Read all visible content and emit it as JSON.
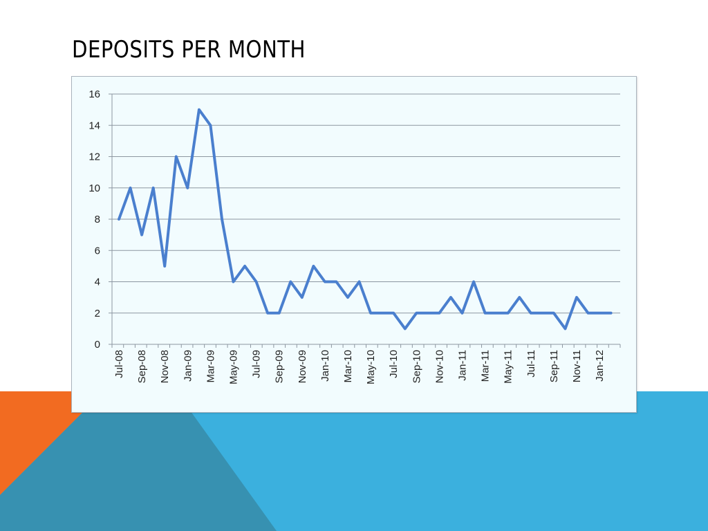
{
  "slide": {
    "title": "Deposits per month",
    "colors": {
      "orange": "#f26b21",
      "blue_light": "#3bb0de",
      "blue_dark": "#3791b1",
      "chart_background": "#f2fcfe",
      "line": "#4a7fce",
      "grid": "#8c96a0"
    }
  },
  "chart_data": {
    "type": "line",
    "title": "",
    "xlabel": "",
    "ylabel": "",
    "ylim": [
      0,
      16
    ],
    "yticks": [
      0,
      2,
      4,
      6,
      8,
      10,
      12,
      14,
      16
    ],
    "grid": true,
    "legend": "none",
    "x": [
      "Jul-08",
      "Aug-08",
      "Sep-08",
      "Oct-08",
      "Nov-08",
      "Dec-08",
      "Jan-09",
      "Feb-09",
      "Mar-09",
      "Apr-09",
      "May-09",
      "Jun-09",
      "Jul-09",
      "Aug-09",
      "Sep-09",
      "Oct-09",
      "Nov-09",
      "Dec-09",
      "Jan-10",
      "Feb-10",
      "Mar-10",
      "Apr-10",
      "May-10",
      "Jun-10",
      "Jul-10",
      "Aug-10",
      "Sep-10",
      "Oct-10",
      "Nov-10",
      "Dec-10",
      "Jan-11",
      "Feb-11",
      "Mar-11",
      "Apr-11",
      "May-11",
      "Jun-11",
      "Jul-11",
      "Aug-11",
      "Sep-11",
      "Oct-11",
      "Nov-11",
      "Dec-11",
      "Jan-12",
      "Feb-12"
    ],
    "x_tick_labels": [
      "Jul-08",
      "Sep-08",
      "Nov-08",
      "Jan-09",
      "Mar-09",
      "May-09",
      "Jul-09",
      "Sep-09",
      "Nov-09",
      "Jan-10",
      "Mar-10",
      "May-10",
      "Jul-10",
      "Sep-10",
      "Nov-10",
      "Jan-11",
      "Mar-11",
      "May-11",
      "Jul-11",
      "Sep-11",
      "Nov-11",
      "Jan-12"
    ],
    "series": [
      {
        "values": [
          8,
          10,
          7,
          10,
          5,
          12,
          10,
          15,
          14,
          8,
          4,
          5,
          4,
          2,
          2,
          4,
          3,
          5,
          4,
          4,
          3,
          4,
          2,
          2,
          2,
          1,
          2,
          2,
          2,
          3,
          2,
          4,
          2,
          2,
          2,
          3,
          2,
          2,
          2,
          1,
          3,
          2,
          2,
          2
        ]
      }
    ]
  }
}
